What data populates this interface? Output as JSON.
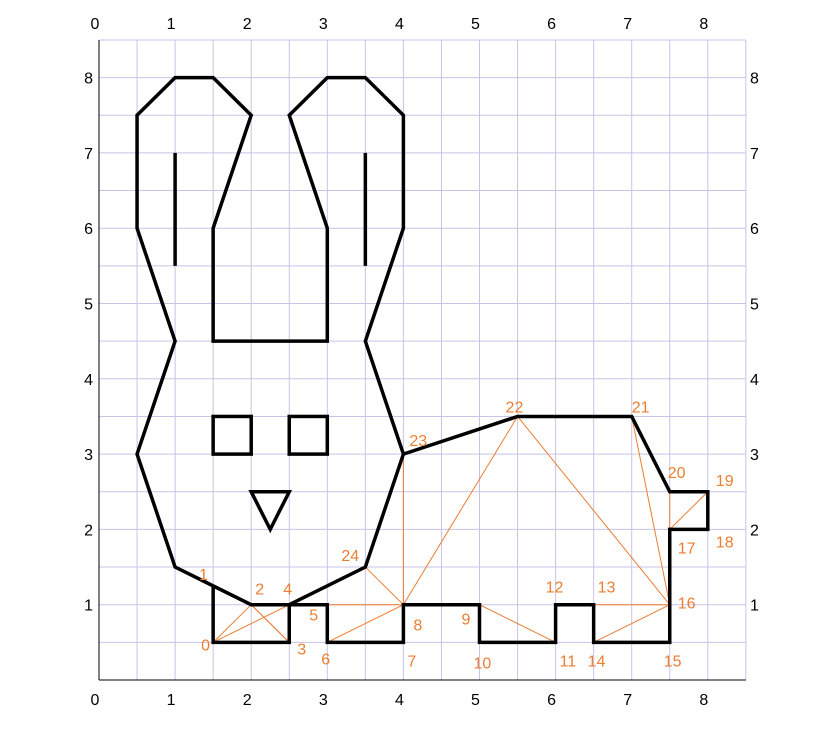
{
  "grid": {
    "x_min": 0,
    "x_max": 8.5,
    "y_min": 0,
    "y_max": 8.5,
    "step": 0.5,
    "line_color": "#c9c3e6",
    "axis_color": "#000000"
  },
  "axis_labels": {
    "top_x": [
      "0",
      "1",
      "2",
      "3",
      "4",
      "5",
      "6",
      "7",
      "8"
    ],
    "bottom_x": [
      "0",
      "1",
      "2",
      "3",
      "4",
      "5",
      "6",
      "7",
      "8"
    ],
    "left_y": [
      "1",
      "2",
      "3",
      "4",
      "5",
      "6",
      "7",
      "8"
    ],
    "right_y": [
      "1",
      "2",
      "3",
      "4",
      "5",
      "6",
      "7",
      "8"
    ]
  },
  "colors": {
    "outline": "#000000",
    "triangulation": "#ed7d31",
    "labels": "#ed7d31"
  },
  "rabbit": {
    "head_outline": [
      [
        1.5,
        1.25
      ],
      [
        1,
        1.5
      ],
      [
        0.5,
        3
      ],
      [
        1,
        4.5
      ],
      [
        0.5,
        6
      ],
      [
        0.5,
        7.5
      ],
      [
        1,
        8
      ],
      [
        1.5,
        8
      ],
      [
        2,
        7.5
      ],
      [
        1.5,
        6
      ],
      [
        1.5,
        4.5
      ],
      [
        3,
        4.5
      ],
      [
        3,
        6
      ],
      [
        2.5,
        7.5
      ],
      [
        3,
        8
      ],
      [
        3.5,
        8
      ],
      [
        4,
        7.5
      ],
      [
        4,
        6
      ],
      [
        3.5,
        4.5
      ],
      [
        4,
        3
      ]
    ],
    "ear_lines": [
      [
        [
          1,
          7
        ],
        [
          1,
          5.5
        ]
      ],
      [
        [
          3.5,
          7
        ],
        [
          3.5,
          5.5
        ]
      ]
    ],
    "eyes": [
      [
        [
          1.5,
          3
        ],
        [
          2,
          3.5
        ]
      ],
      [
        [
          2.5,
          3
        ],
        [
          3,
          3.5
        ]
      ]
    ],
    "nose": [
      [
        2,
        2.5
      ],
      [
        2.5,
        2.5
      ],
      [
        2.25,
        2
      ]
    ]
  },
  "vertices": [
    {
      "id": "0",
      "x": 1.5,
      "y": 0.5
    },
    {
      "id": "1",
      "x": 1.5,
      "y": 1.25
    },
    {
      "id": "2",
      "x": 2,
      "y": 1
    },
    {
      "id": "3",
      "x": 2.5,
      "y": 0.5
    },
    {
      "id": "4",
      "x": 2.5,
      "y": 1
    },
    {
      "id": "5",
      "x": 3,
      "y": 1
    },
    {
      "id": "6",
      "x": 3,
      "y": 0.5
    },
    {
      "id": "7",
      "x": 4,
      "y": 0.5
    },
    {
      "id": "8",
      "x": 4,
      "y": 1
    },
    {
      "id": "9",
      "x": 5,
      "y": 1
    },
    {
      "id": "10",
      "x": 5,
      "y": 0.5
    },
    {
      "id": "11",
      "x": 6,
      "y": 0.5
    },
    {
      "id": "12",
      "x": 6,
      "y": 1
    },
    {
      "id": "13",
      "x": 6.5,
      "y": 1
    },
    {
      "id": "14",
      "x": 6.5,
      "y": 0.5
    },
    {
      "id": "15",
      "x": 7.5,
      "y": 0.5
    },
    {
      "id": "16",
      "x": 7.5,
      "y": 1
    },
    {
      "id": "17",
      "x": 7.5,
      "y": 2
    },
    {
      "id": "18",
      "x": 8,
      "y": 2
    },
    {
      "id": "19",
      "x": 8,
      "y": 2.5
    },
    {
      "id": "20",
      "x": 7.5,
      "y": 2.5
    },
    {
      "id": "21",
      "x": 7,
      "y": 3.5
    },
    {
      "id": "22",
      "x": 5.5,
      "y": 3.5
    },
    {
      "id": "23",
      "x": 4,
      "y": 3
    },
    {
      "id": "24",
      "x": 3.5,
      "y": 1.5
    }
  ],
  "triangulation_edges": [
    [
      "0",
      "2"
    ],
    [
      "2",
      "3"
    ],
    [
      "2",
      "4"
    ],
    [
      "5",
      "8"
    ],
    [
      "8",
      "6"
    ],
    [
      "8",
      "23"
    ],
    [
      "8",
      "22"
    ],
    [
      "8",
      "24"
    ],
    [
      "9",
      "10"
    ],
    [
      "9",
      "11"
    ],
    [
      "12",
      "13"
    ],
    [
      "13",
      "16"
    ],
    [
      "14",
      "16"
    ],
    [
      "16",
      "22"
    ],
    [
      "16",
      "21"
    ],
    [
      "17",
      "20"
    ],
    [
      "17",
      "19"
    ],
    [
      "22",
      "23"
    ],
    [
      "21",
      "22"
    ]
  ]
}
